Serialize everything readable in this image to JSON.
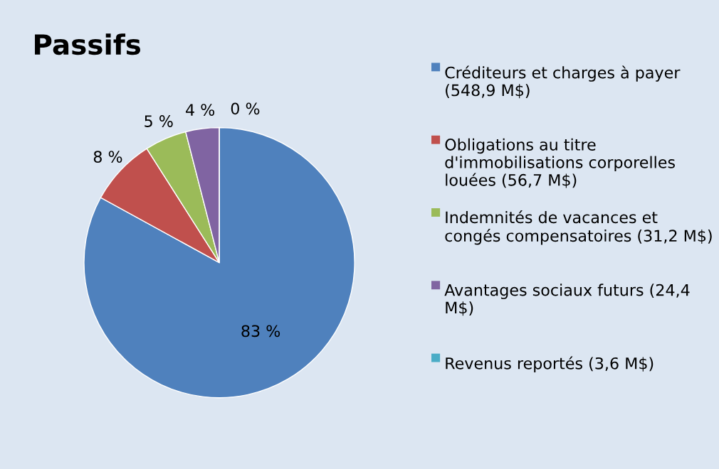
{
  "chart_data": {
    "type": "pie",
    "title": "Passifs",
    "categories": [
      "Créditeurs et charges à payer (548,9 M$)",
      "Obligations au titre d'immobilisations corporelles louées (56,7 M$)",
      "Indemnités de vacances et congés compensatoires (31,2 M$)",
      "Avantages sociaux futurs (24,4 M$)",
      "Revenus reportés (3,6 M$)"
    ],
    "values": [
      83,
      8,
      5,
      4,
      0
    ],
    "value_labels": [
      "83 %",
      "8 %",
      "5 %",
      "4 %",
      "0 %"
    ],
    "colors": [
      "#4f81bd",
      "#c0504d",
      "#9bbb59",
      "#8064a2",
      "#4bacc6"
    ],
    "legend": "right"
  }
}
